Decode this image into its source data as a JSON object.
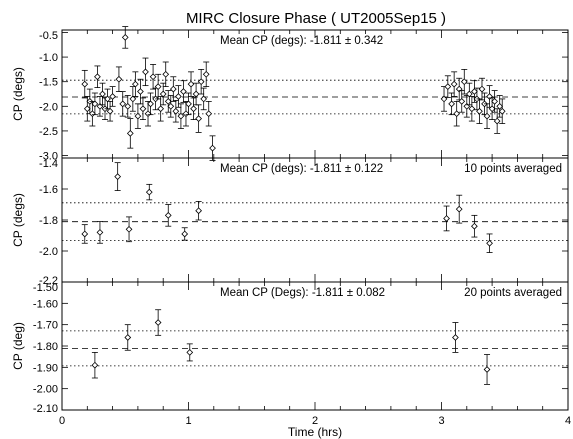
{
  "figure": {
    "title": "MIRC Closure Phase ( UT2005Sep15 )"
  },
  "chart_data": [
    {
      "type": "scatter",
      "title": "Mean CP (degs): -1.811 ± 0.342",
      "note": "",
      "ylabel": "CP (degs)",
      "xlabel": "",
      "xlim": [
        0,
        4
      ],
      "ylim": [
        -3.05,
        -0.45
      ],
      "yticks": [
        -0.5,
        -1.0,
        -1.5,
        -2.0,
        -2.5,
        -3.0
      ],
      "ytick_labels": [
        "-0.5",
        "-1.0",
        "-1.5",
        "-2.0",
        "-2.5",
        "-3.0"
      ],
      "xticks": [
        0,
        1,
        2,
        3,
        4
      ],
      "xtick_labels": [
        "",
        "",
        "",
        "",
        ""
      ],
      "mean": -1.811,
      "band": [
        -1.469,
        -2.153
      ],
      "points": [
        [
          0.18,
          -1.55,
          0.28
        ],
        [
          0.2,
          -2.05,
          0.25
        ],
        [
          0.22,
          -1.9,
          0.25
        ],
        [
          0.24,
          -2.15,
          0.25
        ],
        [
          0.26,
          -1.95,
          0.22
        ],
        [
          0.28,
          -1.4,
          0.22
        ],
        [
          0.3,
          -2.0,
          0.2
        ],
        [
          0.32,
          -1.75,
          0.22
        ],
        [
          0.34,
          -2.05,
          0.22
        ],
        [
          0.36,
          -1.85,
          0.2
        ],
        [
          0.38,
          -2.1,
          0.2
        ],
        [
          0.4,
          -1.8,
          0.2
        ],
        [
          0.45,
          -1.45,
          0.25
        ],
        [
          0.48,
          -1.95,
          0.25
        ],
        [
          0.5,
          -0.6,
          0.22
        ],
        [
          0.52,
          -2.0,
          0.22
        ],
        [
          0.54,
          -2.55,
          0.3
        ],
        [
          0.56,
          -1.85,
          0.25
        ],
        [
          0.58,
          -1.55,
          0.25
        ],
        [
          0.6,
          -2.2,
          0.25
        ],
        [
          0.62,
          -1.7,
          0.25
        ],
        [
          0.64,
          -2.05,
          0.22
        ],
        [
          0.66,
          -1.3,
          0.28
        ],
        [
          0.68,
          -2.15,
          0.25
        ],
        [
          0.7,
          -1.95,
          0.22
        ],
        [
          0.72,
          -1.4,
          0.25
        ],
        [
          0.74,
          -1.85,
          0.22
        ],
        [
          0.76,
          -1.6,
          0.25
        ],
        [
          0.78,
          -2.05,
          0.25
        ],
        [
          0.8,
          -1.75,
          0.22
        ],
        [
          0.82,
          -1.35,
          0.25
        ],
        [
          0.84,
          -1.9,
          0.22
        ],
        [
          0.86,
          -2.0,
          0.22
        ],
        [
          0.88,
          -1.65,
          0.25
        ],
        [
          0.9,
          -2.1,
          0.22
        ],
        [
          0.92,
          -1.8,
          0.22
        ],
        [
          0.94,
          -2.2,
          0.25
        ],
        [
          0.96,
          -1.7,
          0.22
        ],
        [
          0.98,
          -2.15,
          0.25
        ],
        [
          1.0,
          -1.95,
          0.22
        ],
        [
          1.02,
          -1.55,
          0.25
        ],
        [
          1.04,
          -2.05,
          0.22
        ],
        [
          1.06,
          -1.75,
          0.22
        ],
        [
          1.08,
          -2.25,
          0.28
        ],
        [
          1.1,
          -1.5,
          0.25
        ],
        [
          1.12,
          -1.85,
          0.22
        ],
        [
          1.14,
          -1.35,
          0.25
        ],
        [
          1.16,
          -2.15,
          0.25
        ],
        [
          1.19,
          -2.85,
          0.25
        ],
        [
          3.02,
          -1.85,
          0.25
        ],
        [
          3.05,
          -1.6,
          0.22
        ],
        [
          3.08,
          -1.95,
          0.22
        ],
        [
          3.1,
          -1.55,
          0.25
        ],
        [
          3.12,
          -2.15,
          0.25
        ],
        [
          3.14,
          -1.65,
          0.22
        ],
        [
          3.16,
          -1.9,
          0.22
        ],
        [
          3.18,
          -1.5,
          0.25
        ],
        [
          3.2,
          -2.0,
          0.22
        ],
        [
          3.22,
          -1.75,
          0.22
        ],
        [
          3.24,
          -2.05,
          0.25
        ],
        [
          3.26,
          -1.7,
          0.22
        ],
        [
          3.28,
          -1.85,
          0.22
        ],
        [
          3.3,
          -2.1,
          0.25
        ],
        [
          3.32,
          -1.65,
          0.22
        ],
        [
          3.34,
          -1.95,
          0.22
        ],
        [
          3.36,
          -2.2,
          0.25
        ],
        [
          3.38,
          -1.8,
          0.22
        ],
        [
          3.4,
          -2.05,
          0.22
        ],
        [
          3.42,
          -1.9,
          0.22
        ],
        [
          3.44,
          -2.3,
          0.25
        ],
        [
          3.46,
          -2.0,
          0.22
        ],
        [
          3.48,
          -2.1,
          0.25
        ]
      ]
    },
    {
      "type": "scatter",
      "title": "Mean CP (degs): -1.811 ± 0.122",
      "note": "10 points averaged",
      "ylabel": "CP (degs)",
      "xlabel": "",
      "xlim": [
        0,
        4
      ],
      "ylim": [
        -2.2,
        -1.4
      ],
      "yticks": [
        -1.4,
        -1.6,
        -1.8,
        -2.0,
        -2.2
      ],
      "ytick_labels": [
        "-1.4",
        "-1.6",
        "-1.8",
        "-2.0",
        "-2.2"
      ],
      "xticks": [
        0,
        1,
        2,
        3,
        4
      ],
      "xtick_labels": [
        "",
        "",
        "",
        "",
        ""
      ],
      "mean": -1.811,
      "band": [
        -1.689,
        -1.933
      ],
      "points": [
        [
          0.18,
          -1.89,
          0.06
        ],
        [
          0.3,
          -1.88,
          0.07
        ],
        [
          0.44,
          -1.52,
          0.09
        ],
        [
          0.53,
          -1.86,
          0.08
        ],
        [
          0.69,
          -1.62,
          0.05
        ],
        [
          0.84,
          -1.77,
          0.07
        ],
        [
          0.97,
          -1.89,
          0.04
        ],
        [
          1.08,
          -1.74,
          0.06
        ],
        [
          3.04,
          -1.79,
          0.08
        ],
        [
          3.14,
          -1.73,
          0.09
        ],
        [
          3.26,
          -1.84,
          0.07
        ],
        [
          3.38,
          -1.95,
          0.06
        ]
      ]
    },
    {
      "type": "scatter",
      "title": "Mean CP (Degs): -1.811 ± 0.082",
      "note": "20 points averaged",
      "ylabel": "CP (deg)",
      "xlabel": "Time (hrs)",
      "xlim": [
        0,
        4
      ],
      "ylim": [
        -2.1,
        -1.5
      ],
      "yticks": [
        -1.5,
        -1.6,
        -1.7,
        -1.8,
        -1.9,
        -2.0,
        -2.1
      ],
      "ytick_labels": [
        "-1.50",
        "-1.60",
        "-1.70",
        "-1.80",
        "-1.90",
        "-2.00",
        "-2.10"
      ],
      "xticks": [
        0,
        1,
        2,
        3,
        4
      ],
      "xtick_labels": [
        "0",
        "1",
        "2",
        "3",
        "4"
      ],
      "mean": -1.811,
      "band": [
        -1.729,
        -1.893
      ],
      "points": [
        [
          0.26,
          -1.89,
          0.06
        ],
        [
          0.52,
          -1.76,
          0.06
        ],
        [
          0.76,
          -1.69,
          0.06
        ],
        [
          1.01,
          -1.83,
          0.04
        ],
        [
          3.11,
          -1.76,
          0.07
        ],
        [
          3.36,
          -1.91,
          0.07
        ]
      ]
    }
  ]
}
